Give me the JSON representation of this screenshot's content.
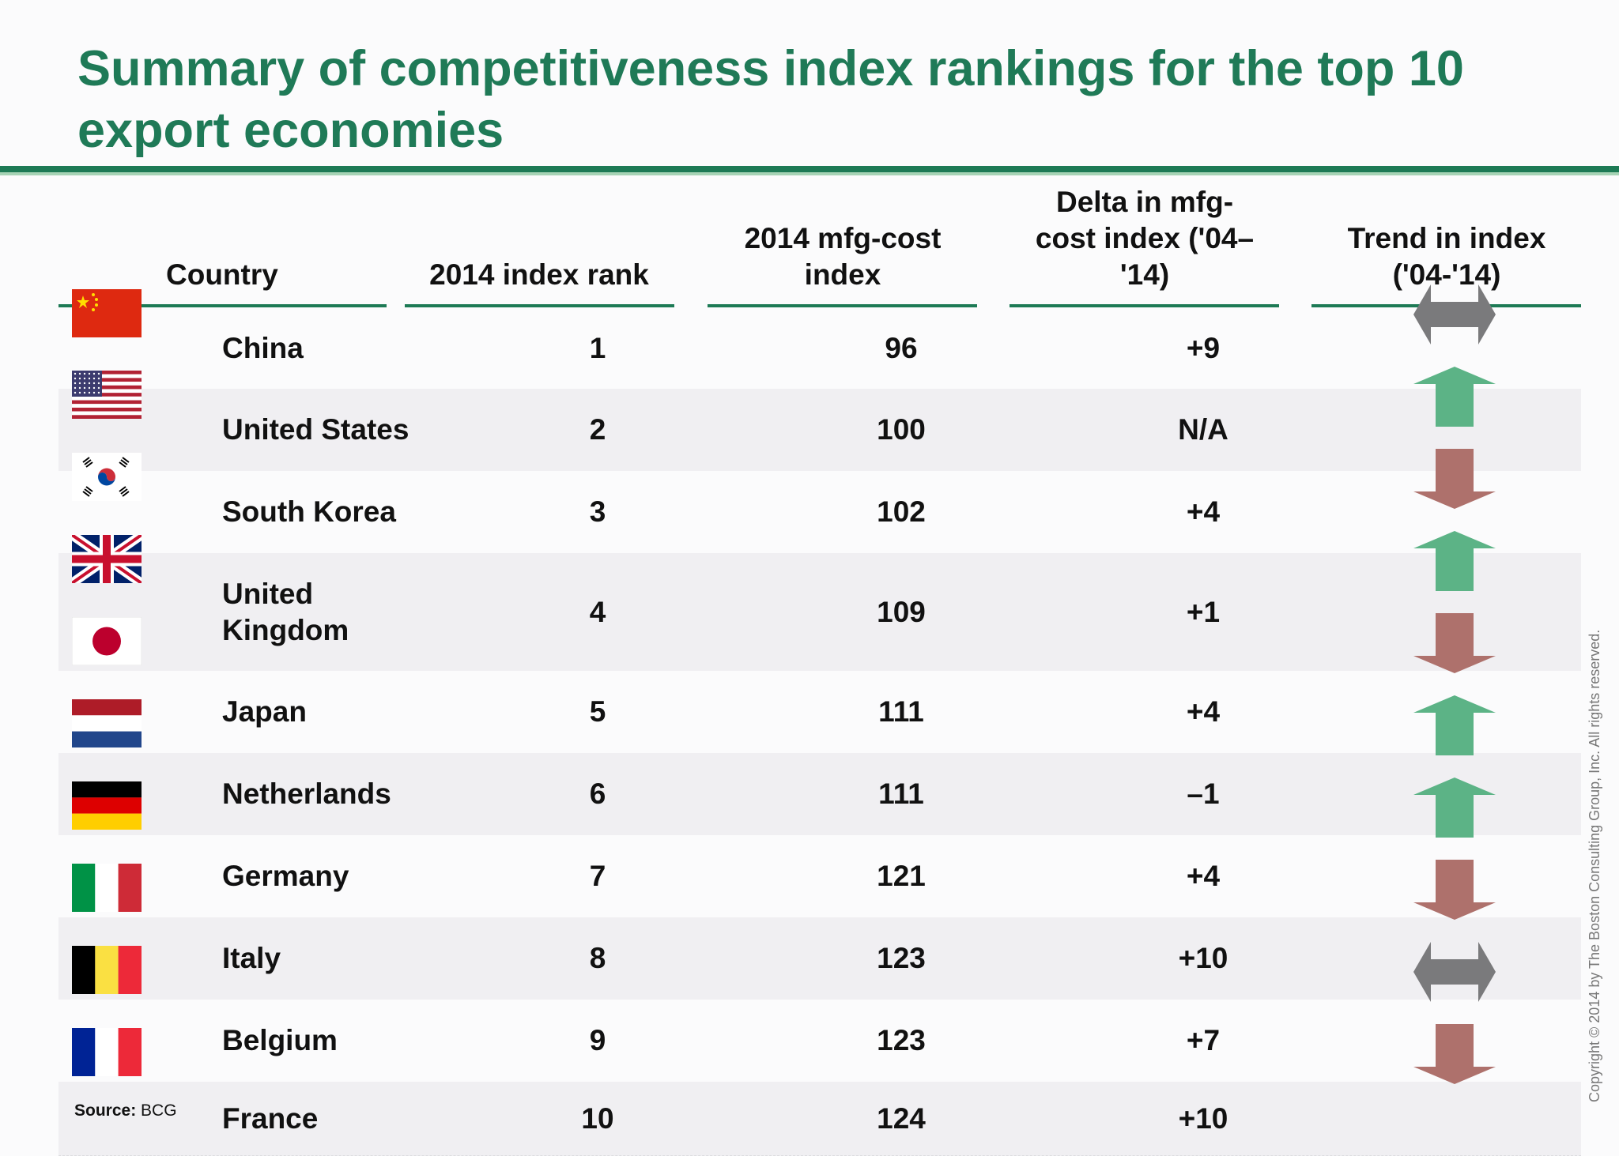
{
  "title": "Summary of competitiveness index rankings for the top 10 export economies",
  "columns": {
    "country": "Country",
    "rank": "2014 index rank",
    "cost_line1": "2014 mfg-cost",
    "cost_line2": "index",
    "delta_line1": "Delta in mfg-",
    "delta_line2": "cost index ('04–",
    "delta_line3": "'14)",
    "trend_line1": "Trend in index",
    "trend_line2": "('04-'14)"
  },
  "chart_data": {
    "type": "table",
    "columns": [
      "Country",
      "2014 index rank",
      "2014 mfg-cost index",
      "Delta in mfg-cost index ('04–'14)",
      "Trend in index ('04-'14)"
    ],
    "rows": [
      {
        "country": "China",
        "rank": "1",
        "cost_index": "96",
        "delta": "+9",
        "trend": "flat",
        "flag": "china-flag"
      },
      {
        "country": "United States",
        "rank": "2",
        "cost_index": "100",
        "delta": "N/A",
        "trend": "up",
        "flag": "us-flag"
      },
      {
        "country": "South Korea",
        "rank": "3",
        "cost_index": "102",
        "delta": "+4",
        "trend": "down",
        "flag": "south-korea-flag"
      },
      {
        "country": "United Kingdom",
        "rank": "4",
        "cost_index": "109",
        "delta": "+1",
        "trend": "up",
        "flag": "uk-flag"
      },
      {
        "country": "Japan",
        "rank": "5",
        "cost_index": "111",
        "delta": "+4",
        "trend": "down",
        "flag": "japan-flag"
      },
      {
        "country": "Netherlands",
        "rank": "6",
        "cost_index": "111",
        "delta": "–1",
        "trend": "up",
        "flag": "netherlands-flag"
      },
      {
        "country": "Germany",
        "rank": "7",
        "cost_index": "121",
        "delta": "+4",
        "trend": "up",
        "flag": "germany-flag"
      },
      {
        "country": "Italy",
        "rank": "8",
        "cost_index": "123",
        "delta": "+10",
        "trend": "down",
        "flag": "italy-flag"
      },
      {
        "country": "Belgium",
        "rank": "9",
        "cost_index": "123",
        "delta": "+7",
        "trend": "flat",
        "flag": "belgium-flag"
      },
      {
        "country": "France",
        "rank": "10",
        "cost_index": "124",
        "delta": "+10",
        "trend": "down",
        "flag": "france-flag"
      }
    ]
  },
  "colors": {
    "title": "#1f7a57",
    "up_arrow": "#5cb386",
    "down_arrow": "#ae716c",
    "flat_arrow": "#7a7a7c"
  },
  "source_label": "Source:",
  "source_value": "BCG",
  "copyright": "Copyright © 2014 by The Boston Consulting Group, Inc. All rights reserved."
}
